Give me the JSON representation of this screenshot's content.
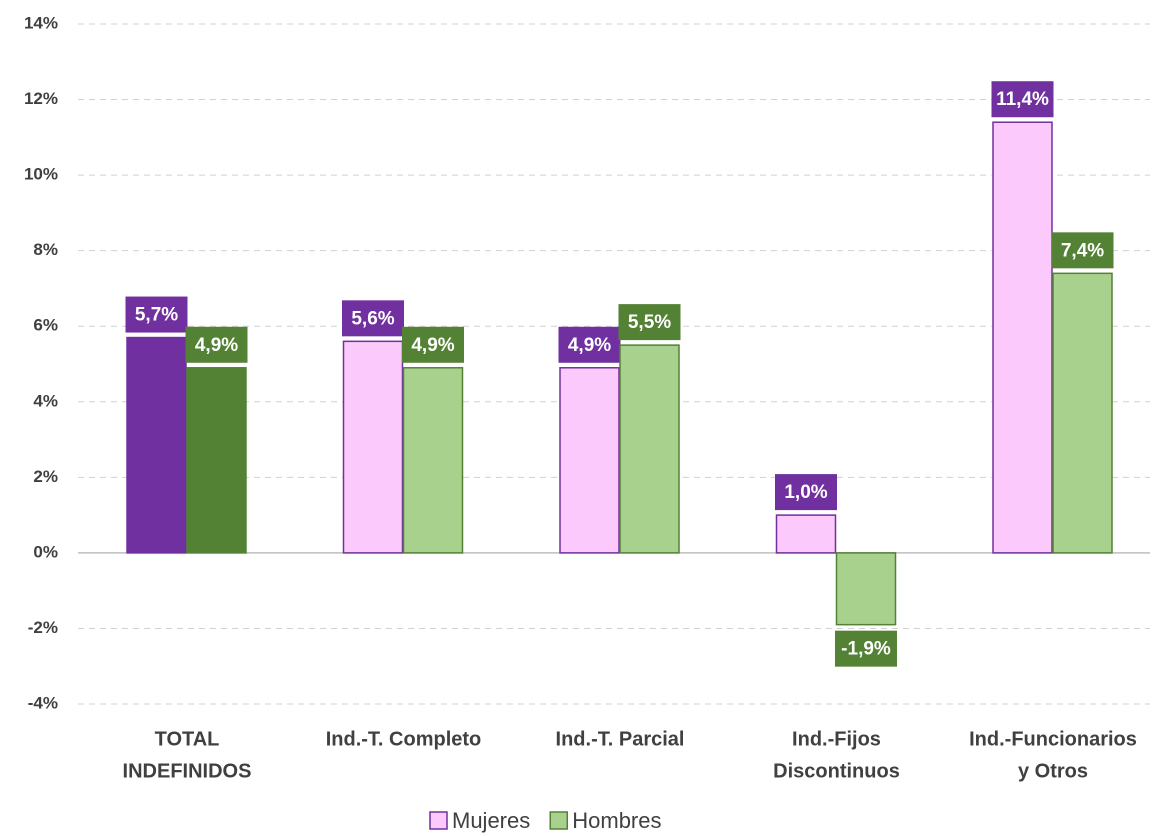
{
  "chart_data": {
    "type": "bar",
    "categories": [
      [
        "TOTAL",
        "INDEFINIDOS"
      ],
      [
        "Ind.-T. Completo"
      ],
      [
        "Ind.-T. Parcial"
      ],
      [
        "Ind.-Fijos",
        "Discontinuos"
      ],
      [
        "Ind.-Funcionarios",
        "y Otros"
      ]
    ],
    "series": [
      {
        "name": "Mujeres",
        "color": "#fbc9fb",
        "edge": "#7030a0",
        "label_color": "#7030a0",
        "colors": [
          "#7030a0",
          "#fbc9fb",
          "#fbc9fb",
          "#fbc9fb",
          "#fbc9fb"
        ],
        "values": [
          5.7,
          5.6,
          4.9,
          1.0,
          11.4
        ],
        "value_labels": [
          "5,7%",
          "5,6%",
          "4,9%",
          "1,0%",
          "11,4%"
        ]
      },
      {
        "name": "Hombres",
        "color": "#a9d18e",
        "edge": "#548235",
        "label_color": "#548235",
        "colors": [
          "#548235",
          "#a9d18e",
          "#a9d18e",
          "#a9d18e",
          "#a9d18e"
        ],
        "values": [
          4.9,
          4.9,
          5.5,
          -1.9,
          7.4
        ],
        "value_labels": [
          "4,9%",
          "4,9%",
          "5,5%",
          "-1,9%",
          "7,4%"
        ]
      }
    ],
    "ylim": [
      -4,
      14
    ],
    "yticks": [
      {
        "value": -4,
        "label": "-4%"
      },
      {
        "value": -2,
        "label": "-2%"
      },
      {
        "value": 0,
        "label": "0%"
      },
      {
        "value": 2,
        "label": "2%"
      },
      {
        "value": 4,
        "label": "4%"
      },
      {
        "value": 6,
        "label": "6%"
      },
      {
        "value": 8,
        "label": "8%"
      },
      {
        "value": 10,
        "label": "10%"
      },
      {
        "value": 12,
        "label": "12%"
      },
      {
        "value": 14,
        "label": "14%"
      }
    ],
    "grid": true,
    "legend": "bottom"
  }
}
